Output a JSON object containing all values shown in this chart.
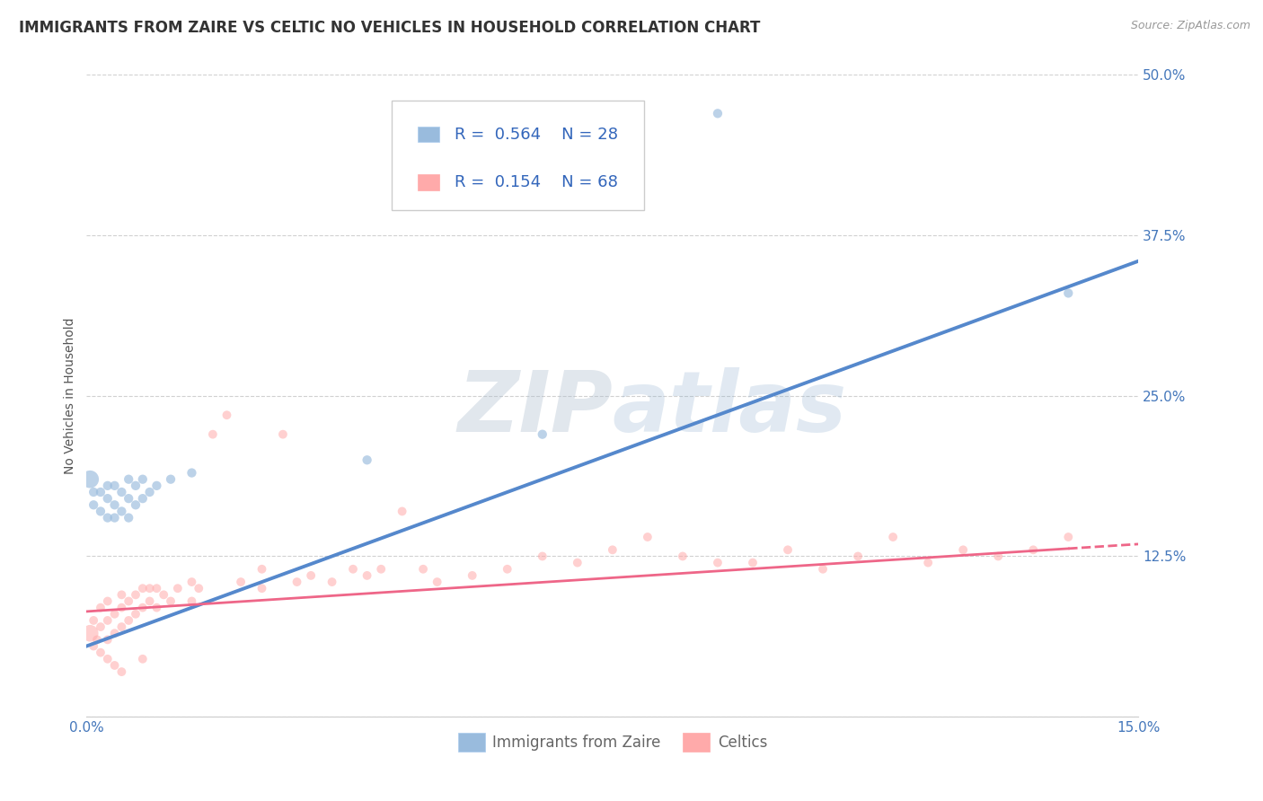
{
  "title": "IMMIGRANTS FROM ZAIRE VS CELTIC NO VEHICLES IN HOUSEHOLD CORRELATION CHART",
  "source_text": "Source: ZipAtlas.com",
  "ylabel": "No Vehicles in Household",
  "xmin": 0.0,
  "xmax": 0.15,
  "ymin": 0.0,
  "ymax": 0.5,
  "yticks": [
    0.0,
    0.125,
    0.25,
    0.375,
    0.5
  ],
  "ytick_labels": [
    "",
    "12.5%",
    "25.0%",
    "37.5%",
    "50.0%"
  ],
  "xticks": [
    0.0,
    0.15
  ],
  "xtick_labels": [
    "0.0%",
    "15.0%"
  ],
  "watermark_zip": "ZIP",
  "watermark_atlas": "atlas",
  "blue_color": "#99BBDD",
  "pink_color": "#FFAAAA",
  "trend_blue": "#5588CC",
  "trend_pink": "#EE6688",
  "scatter_blue_alpha": 0.65,
  "scatter_pink_alpha": 0.55,
  "blue_scatter_x": [
    0.0005,
    0.001,
    0.001,
    0.002,
    0.002,
    0.003,
    0.003,
    0.003,
    0.004,
    0.004,
    0.004,
    0.005,
    0.005,
    0.006,
    0.006,
    0.006,
    0.007,
    0.007,
    0.008,
    0.008,
    0.009,
    0.01,
    0.012,
    0.015,
    0.04,
    0.065,
    0.09,
    0.14
  ],
  "blue_scatter_y": [
    0.185,
    0.165,
    0.175,
    0.16,
    0.175,
    0.155,
    0.17,
    0.18,
    0.155,
    0.165,
    0.18,
    0.16,
    0.175,
    0.155,
    0.17,
    0.185,
    0.165,
    0.18,
    0.17,
    0.185,
    0.175,
    0.18,
    0.185,
    0.19,
    0.2,
    0.22,
    0.47,
    0.33
  ],
  "pink_scatter_x": [
    0.0005,
    0.001,
    0.001,
    0.0015,
    0.002,
    0.002,
    0.002,
    0.003,
    0.003,
    0.003,
    0.004,
    0.004,
    0.005,
    0.005,
    0.005,
    0.006,
    0.006,
    0.007,
    0.007,
    0.008,
    0.008,
    0.009,
    0.009,
    0.01,
    0.01,
    0.011,
    0.012,
    0.013,
    0.015,
    0.015,
    0.016,
    0.018,
    0.02,
    0.022,
    0.025,
    0.025,
    0.028,
    0.03,
    0.032,
    0.035,
    0.038,
    0.04,
    0.042,
    0.045,
    0.048,
    0.05,
    0.055,
    0.06,
    0.065,
    0.07,
    0.075,
    0.08,
    0.085,
    0.09,
    0.095,
    0.1,
    0.105,
    0.11,
    0.115,
    0.12,
    0.125,
    0.13,
    0.135,
    0.14,
    0.003,
    0.004,
    0.005,
    0.008
  ],
  "pink_scatter_y": [
    0.065,
    0.055,
    0.075,
    0.06,
    0.05,
    0.07,
    0.085,
    0.06,
    0.075,
    0.09,
    0.065,
    0.08,
    0.07,
    0.085,
    0.095,
    0.075,
    0.09,
    0.08,
    0.095,
    0.085,
    0.1,
    0.09,
    0.1,
    0.085,
    0.1,
    0.095,
    0.09,
    0.1,
    0.09,
    0.105,
    0.1,
    0.22,
    0.235,
    0.105,
    0.1,
    0.115,
    0.22,
    0.105,
    0.11,
    0.105,
    0.115,
    0.11,
    0.115,
    0.16,
    0.115,
    0.105,
    0.11,
    0.115,
    0.125,
    0.12,
    0.13,
    0.14,
    0.125,
    0.12,
    0.12,
    0.13,
    0.115,
    0.125,
    0.14,
    0.12,
    0.13,
    0.125,
    0.13,
    0.14,
    0.045,
    0.04,
    0.035,
    0.045
  ],
  "blue_size_default": 55,
  "blue_large_size": 200,
  "pink_size_default": 50,
  "pink_large_size": 180,
  "background_color": "#FFFFFF",
  "grid_color": "#CCCCCC",
  "title_fontsize": 12,
  "axis_label_fontsize": 10,
  "tick_label_fontsize": 11,
  "legend_fontsize": 13,
  "blue_trend_intercept": 0.055,
  "blue_trend_slope": 2.0,
  "pink_trend_intercept": 0.082,
  "pink_trend_slope": 0.35
}
